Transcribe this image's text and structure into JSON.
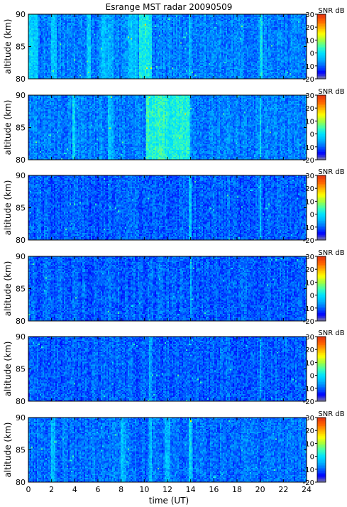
{
  "chart_data": {
    "type": "heatmap",
    "title": "Esrange MST radar 20090509",
    "xlabel": "time (UT)",
    "ylabel": "altitude (km)",
    "x_range": [
      0,
      24
    ],
    "x_ticks": [
      0,
      2,
      4,
      6,
      8,
      10,
      12,
      14,
      16,
      18,
      20,
      22,
      24
    ],
    "colorbar": {
      "label": "SNR dB",
      "range": [
        -20,
        30
      ],
      "ticks": [
        -20,
        -10,
        0,
        10,
        20,
        30
      ],
      "colors": [
        "#7f7f9f",
        "#0000ff",
        "#0060ff",
        "#00b0ff",
        "#00e0ff",
        "#40ffb0",
        "#a0ff40",
        "#ffff00",
        "#ffb000",
        "#ff6000",
        "#e03010"
      ]
    },
    "panels": [
      {
        "y_range": [
          80,
          90
        ],
        "y_ticks": [
          80,
          85,
          90
        ],
        "background_snr": -8,
        "enhanced_intervals_ut": [
          [
            0.0,
            0.9,
            -2
          ],
          [
            2.0,
            2.4,
            -3
          ],
          [
            5.0,
            5.4,
            -3
          ],
          [
            6.3,
            7.3,
            -4
          ],
          [
            8.6,
            9.4,
            -3
          ],
          [
            9.6,
            10.6,
            1
          ],
          [
            13.8,
            14.1,
            -3
          ],
          [
            19.9,
            20.15,
            0
          ]
        ]
      },
      {
        "y_range": [
          80,
          90
        ],
        "y_ticks": [
          80,
          85,
          90
        ],
        "background_snr": -8,
        "enhanced_intervals_ut": [
          [
            3.8,
            4.0,
            0
          ],
          [
            6.9,
            7.4,
            -3
          ],
          [
            10.2,
            12.0,
            3
          ],
          [
            12.0,
            14.0,
            2
          ],
          [
            19.9,
            20.1,
            -2
          ]
        ]
      },
      {
        "y_range": [
          80,
          90
        ],
        "y_ticks": [
          80,
          85,
          90
        ],
        "background_snr": -10,
        "enhanced_intervals_ut": [
          [
            13.8,
            14.1,
            -3
          ],
          [
            19.9,
            20.1,
            -4
          ]
        ]
      },
      {
        "y_range": [
          80,
          90
        ],
        "y_ticks": [
          80,
          85,
          90
        ],
        "background_snr": -10,
        "enhanced_intervals_ut": [
          [
            13.9,
            14.1,
            -5
          ]
        ]
      },
      {
        "y_range": [
          80,
          90
        ],
        "y_ticks": [
          80,
          85,
          90
        ],
        "background_snr": -10,
        "enhanced_intervals_ut": [
          [
            10.4,
            10.6,
            -5
          ],
          [
            19.9,
            20.1,
            -4
          ]
        ]
      },
      {
        "y_range": [
          80,
          90
        ],
        "y_ticks": [
          80,
          85,
          90
        ],
        "background_snr": -9,
        "enhanced_intervals_ut": [
          [
            2.0,
            2.3,
            -4
          ],
          [
            8.0,
            8.4,
            -4
          ],
          [
            10.4,
            10.7,
            -4
          ],
          [
            11.8,
            12.2,
            -5
          ],
          [
            13.8,
            14.1,
            -2
          ]
        ]
      }
    ]
  }
}
